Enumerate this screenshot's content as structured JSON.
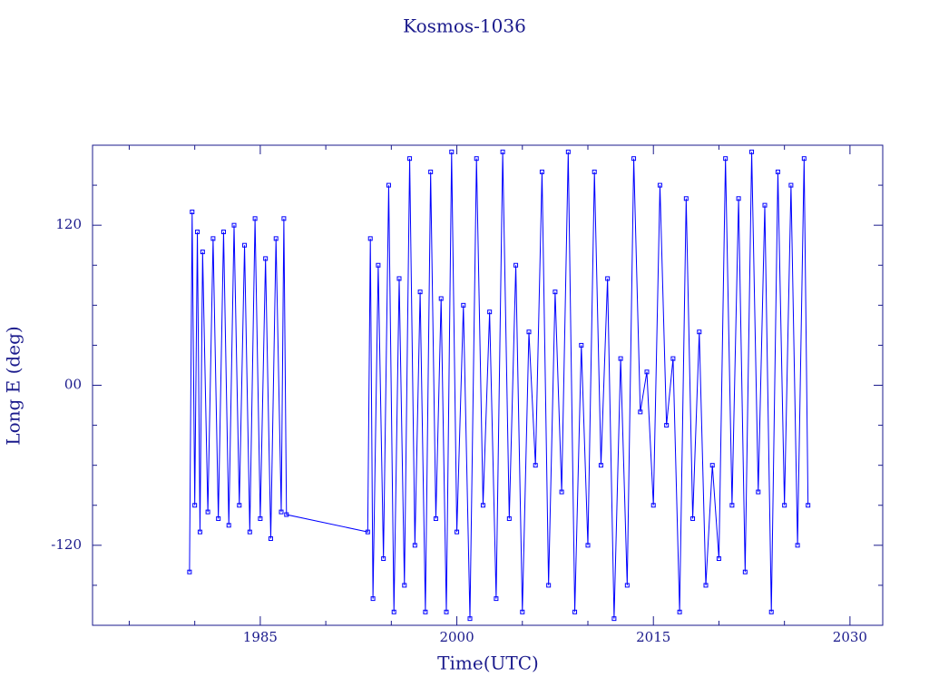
{
  "chart_data": {
    "type": "line",
    "title": "Kosmos-1036",
    "x_label": "Time(UTC)",
    "y_label": "Long E (deg)",
    "xlim": [
      1972.2,
      2032.5
    ],
    "ylim": [
      -180,
      180
    ],
    "xticks": [
      1985,
      2000,
      2015,
      2030
    ],
    "yticks": [
      -120,
      {
        "value": 0,
        "label": "00"
      },
      120
    ],
    "xticks_minor": [
      1975,
      1980,
      1990,
      1995,
      2005,
      2010,
      2020,
      2025
    ],
    "yticks_minor": [
      -150,
      -90,
      -60,
      -30,
      30,
      60,
      90,
      150
    ],
    "series": [
      {
        "name": "Kosmos-1036",
        "color": "#0000ff",
        "x": [
          1979.6,
          1979.8,
          1980.0,
          1980.2,
          1980.4,
          1980.6,
          1981.0,
          1981.4,
          1981.8,
          1982.2,
          1982.6,
          1983.0,
          1983.4,
          1983.8,
          1984.2,
          1984.6,
          1985.0,
          1985.4,
          1985.8,
          1986.2,
          1986.6,
          1986.8,
          1987.0,
          1993.2,
          1993.4,
          1993.6,
          1994.0,
          1994.4,
          1994.8,
          1995.2,
          1995.6,
          1996.0,
          1996.4,
          1996.8,
          1997.2,
          1997.6,
          1998.0,
          1998.4,
          1998.8,
          1999.2,
          1999.6,
          2000.0,
          2000.5,
          2001.0,
          2001.5,
          2002.0,
          2002.5,
          2003.0,
          2003.5,
          2004.0,
          2004.5,
          2005.0,
          2005.5,
          2006.0,
          2006.5,
          2007.0,
          2007.5,
          2008.0,
          2008.5,
          2009.0,
          2009.5,
          2010.0,
          2010.5,
          2011.0,
          2011.5,
          2012.0,
          2012.5,
          2013.0,
          2013.5,
          2014.0,
          2014.5,
          2015.0,
          2015.5,
          2016.0,
          2016.5,
          2017.0,
          2017.5,
          2018.0,
          2018.5,
          2019.0,
          2019.5,
          2020.0,
          2020.5,
          2021.0,
          2021.5,
          2022.0,
          2022.5,
          2023.0,
          2023.5,
          2024.0,
          2024.5,
          2025.0,
          2025.5,
          2026.0,
          2026.5,
          2026.8
        ],
        "values": [
          -140,
          130,
          -90,
          115,
          -110,
          100,
          -95,
          110,
          -100,
          115,
          -105,
          120,
          -90,
          105,
          -110,
          125,
          -100,
          95,
          -115,
          110,
          -95,
          125,
          -97,
          -110,
          110,
          -160,
          90,
          -130,
          150,
          -170,
          80,
          -150,
          170,
          -120,
          70,
          -170,
          160,
          -100,
          65,
          -170,
          175,
          -110,
          60,
          -175,
          170,
          -90,
          55,
          -160,
          175,
          -100,
          90,
          -170,
          40,
          -60,
          160,
          -150,
          70,
          -80,
          175,
          -170,
          30,
          -120,
          160,
          -60,
          80,
          -175,
          20,
          -150,
          170,
          -20,
          10,
          -90,
          150,
          -30,
          20,
          -170,
          140,
          -100,
          40,
          -150,
          -60,
          -130,
          170,
          -90,
          140,
          -140,
          175,
          -80,
          135,
          -170,
          160,
          -90,
          150,
          -120,
          170,
          -90
        ]
      }
    ]
  }
}
